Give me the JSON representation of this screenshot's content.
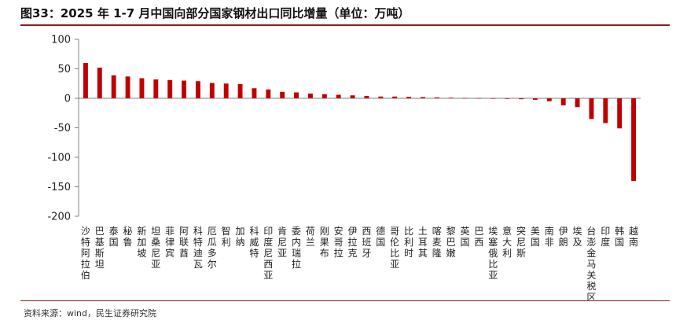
{
  "title": "图33：2025 年 1-7 月中国向部分国家钢材出口同比增量（单位：万吨）",
  "source": "资料来源：wind，民生证券研究院",
  "colors": {
    "bar": "#c00000",
    "axis": "#808080",
    "rule": "#8c1c1c"
  },
  "chart_data": {
    "type": "bar",
    "ylim": [
      -200,
      100
    ],
    "yticks": [
      100,
      50,
      0,
      -50,
      -100,
      -150,
      -200
    ],
    "grid": false,
    "legend": "none",
    "categories": [
      "沙特阿拉伯",
      "巴基斯坦",
      "泰国",
      "秘鲁",
      "新加坡",
      "坦桑尼亚",
      "菲律宾",
      "阿联酋",
      "科特迪瓦",
      "厄瓜多尔",
      "智利",
      "加纳",
      "科威特",
      "印度尼西亚",
      "肯尼亚",
      "委内瑞拉",
      "荷兰",
      "刚果布",
      "安哥拉",
      "伊拉克",
      "西班牙",
      "德国",
      "哥伦比亚",
      "比利时",
      "土耳其",
      "喀麦隆",
      "黎巴嫩",
      "英国",
      "巴西",
      "埃塞俄比亚",
      "意大利",
      "突尼斯",
      "美国",
      "南非",
      "伊朗",
      "埃及",
      "台澎金马关税区",
      "印度",
      "韩国",
      "越南"
    ],
    "values": [
      60,
      52,
      39,
      37,
      34,
      32,
      31,
      30,
      29,
      26,
      25,
      24,
      17,
      15,
      11,
      10,
      8,
      7,
      6,
      5,
      4,
      3,
      3,
      2.5,
      2,
      1.5,
      1,
      0.5,
      0.3,
      -0.5,
      -1,
      -1.5,
      -2.5,
      -5,
      -12,
      -15,
      -35,
      -42,
      -51,
      -140
    ]
  }
}
